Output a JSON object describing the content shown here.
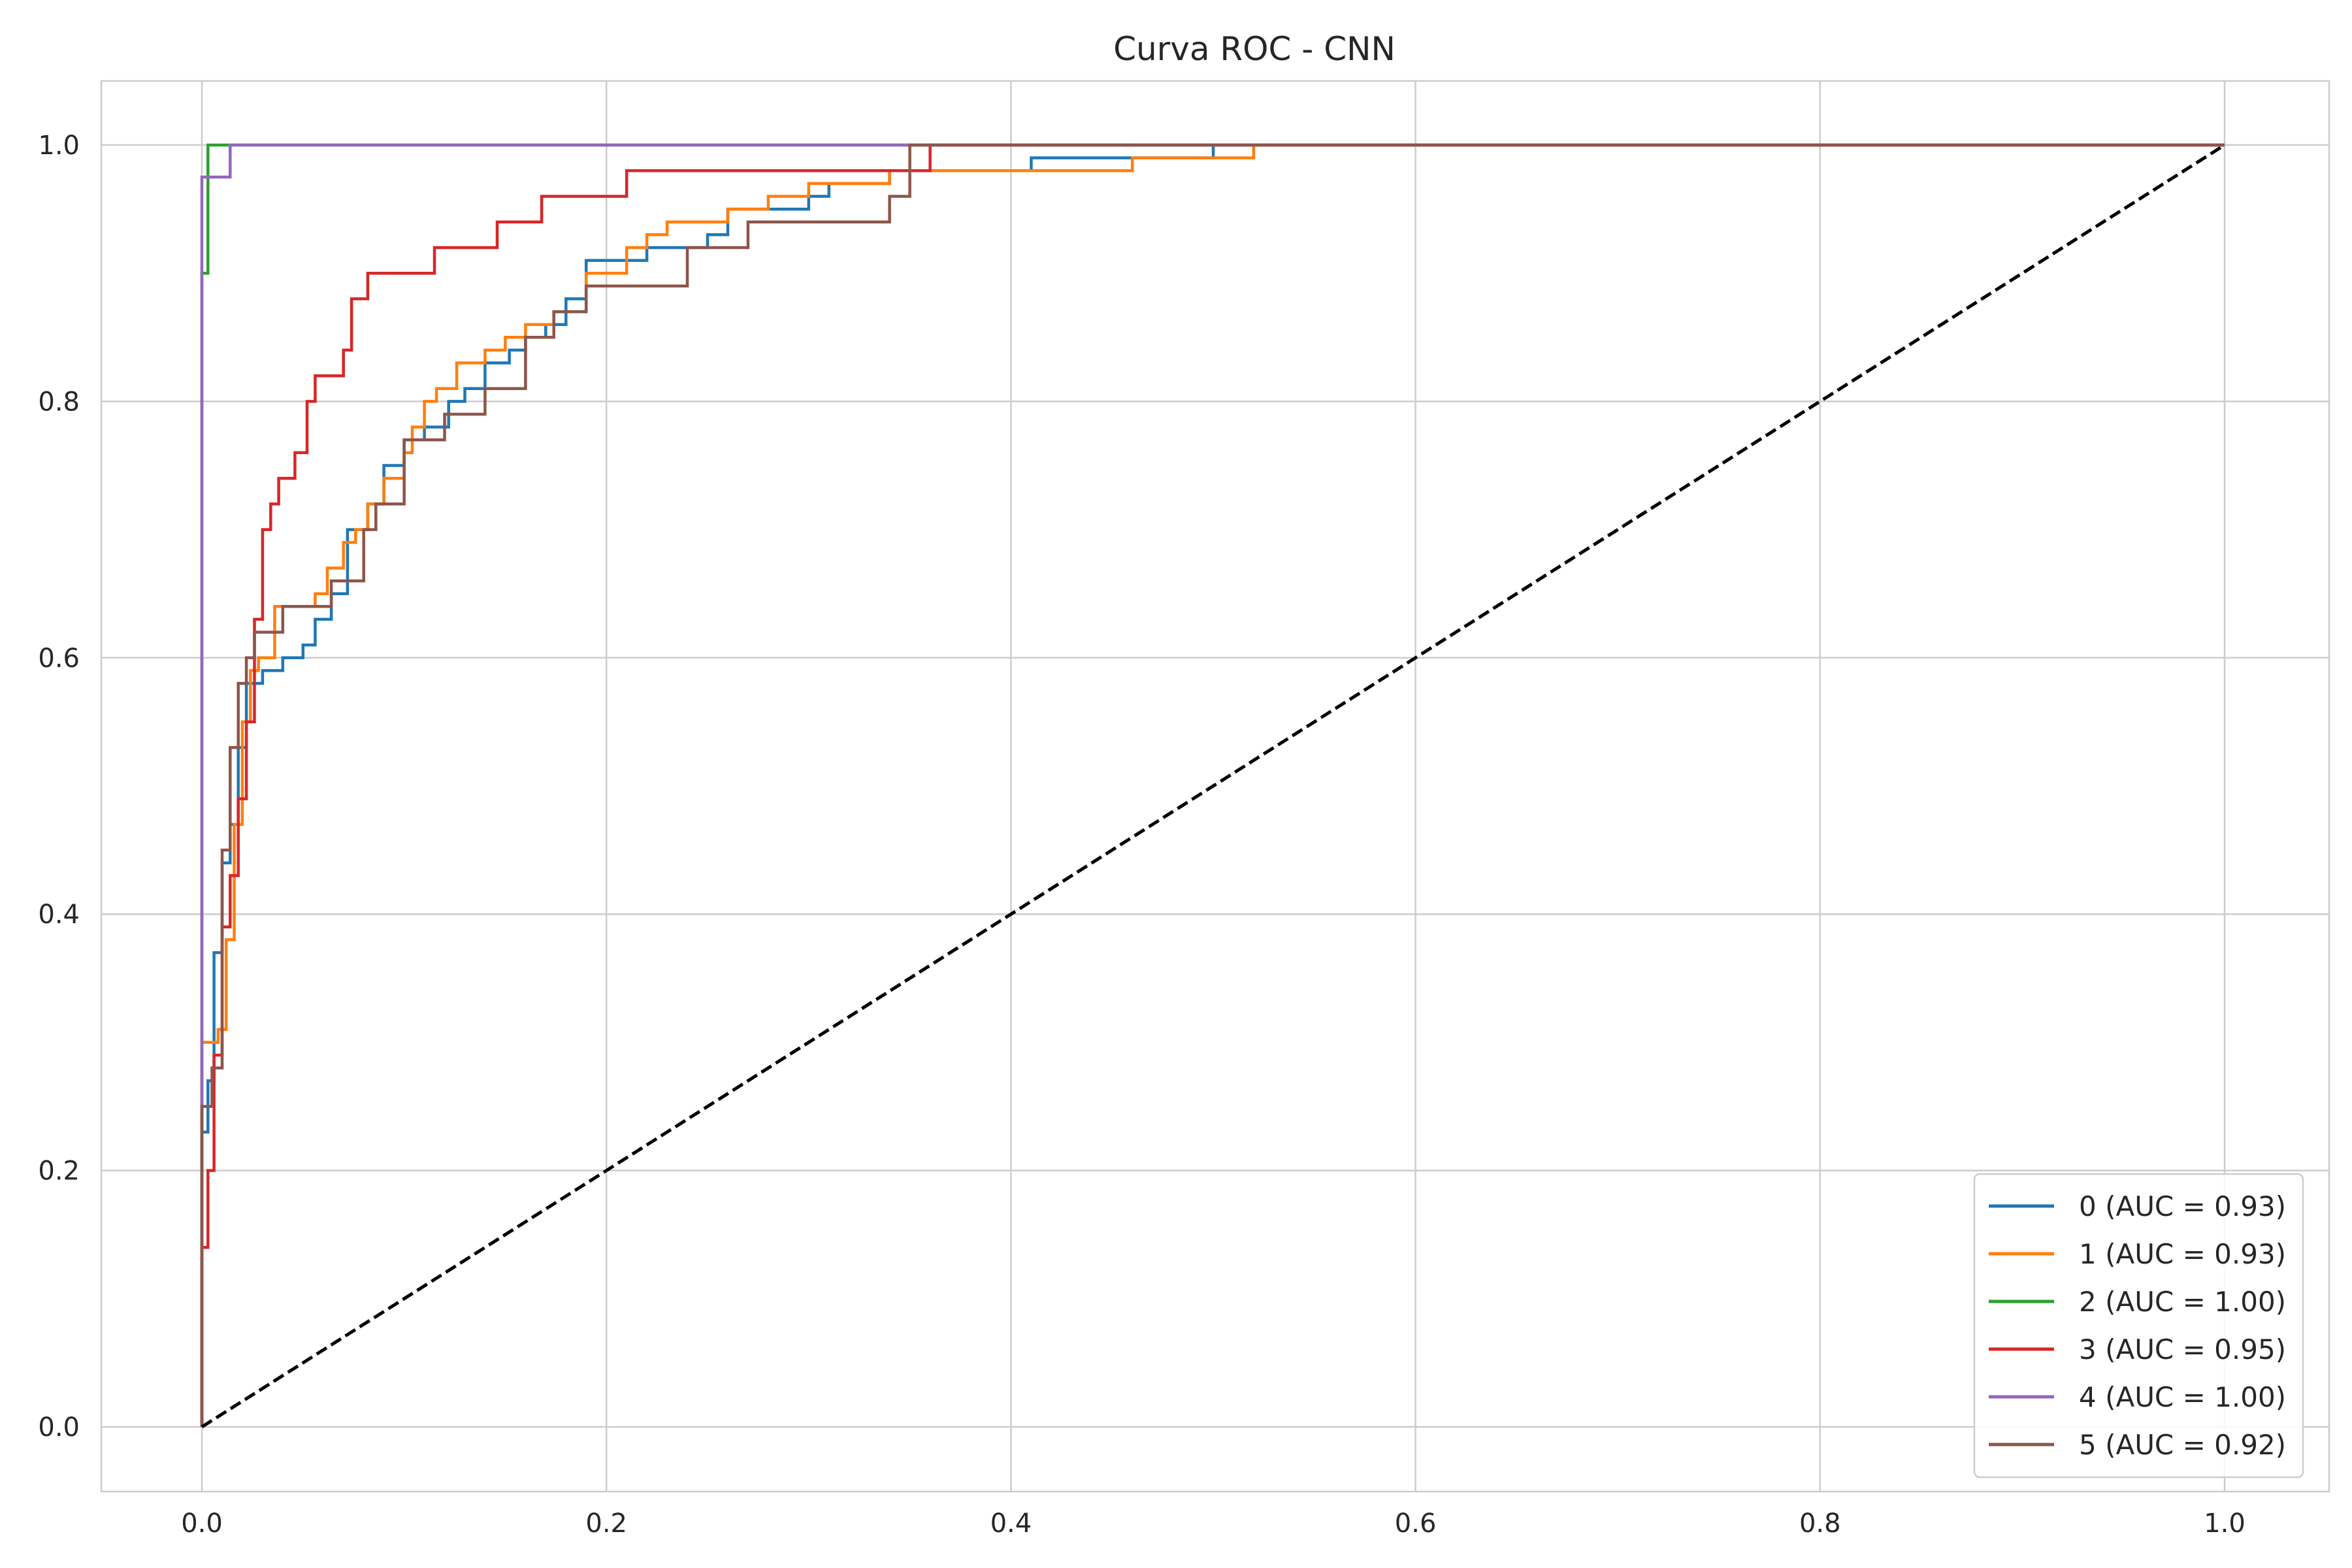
{
  "chart_data": {
    "type": "line",
    "title": "Curva ROC - CNN",
    "xlabel": "",
    "ylabel": "",
    "xlim": [
      -0.05,
      1.05
    ],
    "ylim": [
      -0.05,
      1.05
    ],
    "x_ticks": [
      0.0,
      0.2,
      0.4,
      0.6,
      0.8,
      1.0
    ],
    "y_ticks": [
      0.0,
      0.2,
      0.4,
      0.6,
      0.8,
      1.0
    ],
    "x_tick_labels": [
      "0.0",
      "0.2",
      "0.4",
      "0.6",
      "0.8",
      "1.0"
    ],
    "y_tick_labels": [
      "0.0",
      "0.2",
      "0.4",
      "0.6",
      "0.8",
      "1.0"
    ],
    "grid": true,
    "legend_position": "lower-right",
    "series": [
      {
        "name": "0 (AUC = 0.93)",
        "color": "#1f77b4",
        "x": [
          0.0,
          0.0,
          0.003,
          0.003,
          0.006,
          0.006,
          0.01,
          0.01,
          0.014,
          0.014,
          0.018,
          0.018,
          0.022,
          0.022,
          0.026,
          0.026,
          0.03,
          0.03,
          0.04,
          0.04,
          0.05,
          0.05,
          0.056,
          0.056,
          0.064,
          0.064,
          0.072,
          0.072,
          0.082,
          0.082,
          0.09,
          0.09,
          0.1,
          0.1,
          0.11,
          0.11,
          0.122,
          0.122,
          0.13,
          0.13,
          0.14,
          0.14,
          0.152,
          0.152,
          0.16,
          0.16,
          0.17,
          0.17,
          0.18,
          0.18,
          0.19,
          0.19,
          0.22,
          0.22,
          0.25,
          0.25,
          0.26,
          0.26,
          0.3,
          0.3,
          0.31,
          0.31,
          0.34,
          0.34,
          0.37,
          0.37,
          0.41,
          0.41,
          0.48,
          0.48,
          0.5,
          0.5,
          0.52,
          1.0
        ],
        "y": [
          0.0,
          0.23,
          0.23,
          0.27,
          0.27,
          0.37,
          0.37,
          0.44,
          0.44,
          0.47,
          0.47,
          0.53,
          0.53,
          0.58,
          0.58,
          0.58,
          0.58,
          0.59,
          0.59,
          0.6,
          0.6,
          0.61,
          0.61,
          0.63,
          0.63,
          0.65,
          0.65,
          0.7,
          0.7,
          0.72,
          0.72,
          0.75,
          0.75,
          0.77,
          0.77,
          0.78,
          0.78,
          0.8,
          0.8,
          0.81,
          0.81,
          0.83,
          0.83,
          0.84,
          0.84,
          0.85,
          0.85,
          0.86,
          0.86,
          0.88,
          0.88,
          0.91,
          0.91,
          0.92,
          0.92,
          0.93,
          0.93,
          0.95,
          0.95,
          0.96,
          0.96,
          0.97,
          0.97,
          0.98,
          0.98,
          0.98,
          0.98,
          0.99,
          0.99,
          0.99,
          0.99,
          1.0,
          1.0,
          1.0
        ]
      },
      {
        "name": "1 (AUC = 0.93)",
        "color": "#ff7f0e",
        "x": [
          0.0,
          0.0,
          0.008,
          0.008,
          0.012,
          0.012,
          0.016,
          0.016,
          0.02,
          0.02,
          0.024,
          0.024,
          0.028,
          0.028,
          0.036,
          0.036,
          0.056,
          0.056,
          0.062,
          0.062,
          0.07,
          0.07,
          0.076,
          0.076,
          0.082,
          0.082,
          0.09,
          0.09,
          0.1,
          0.1,
          0.104,
          0.104,
          0.11,
          0.11,
          0.116,
          0.116,
          0.126,
          0.126,
          0.14,
          0.14,
          0.15,
          0.15,
          0.16,
          0.16,
          0.174,
          0.174,
          0.19,
          0.19,
          0.21,
          0.21,
          0.22,
          0.22,
          0.23,
          0.23,
          0.26,
          0.26,
          0.28,
          0.28,
          0.3,
          0.3,
          0.34,
          0.34,
          0.36,
          0.36,
          0.46,
          0.46,
          0.52,
          0.52,
          0.556,
          1.0
        ],
        "y": [
          0.0,
          0.3,
          0.3,
          0.31,
          0.31,
          0.38,
          0.38,
          0.47,
          0.47,
          0.55,
          0.55,
          0.59,
          0.59,
          0.6,
          0.6,
          0.64,
          0.64,
          0.65,
          0.65,
          0.67,
          0.67,
          0.69,
          0.69,
          0.7,
          0.7,
          0.72,
          0.72,
          0.74,
          0.74,
          0.76,
          0.76,
          0.78,
          0.78,
          0.8,
          0.8,
          0.81,
          0.81,
          0.83,
          0.83,
          0.84,
          0.84,
          0.85,
          0.85,
          0.86,
          0.86,
          0.87,
          0.87,
          0.9,
          0.9,
          0.92,
          0.92,
          0.93,
          0.93,
          0.94,
          0.94,
          0.95,
          0.95,
          0.96,
          0.96,
          0.97,
          0.97,
          0.98,
          0.98,
          0.98,
          0.98,
          0.99,
          0.99,
          1.0,
          1.0,
          1.0
        ]
      },
      {
        "name": "2 (AUC = 1.00)",
        "color": "#2ca02c",
        "x": [
          0.0,
          0.0,
          0.003,
          0.003,
          1.0
        ],
        "y": [
          0.0,
          0.9,
          0.9,
          1.0,
          1.0
        ]
      },
      {
        "name": "3 (AUC = 0.95)",
        "color": "#d62728",
        "x": [
          0.0,
          0.0,
          0.003,
          0.003,
          0.006,
          0.006,
          0.01,
          0.01,
          0.014,
          0.014,
          0.018,
          0.018,
          0.022,
          0.022,
          0.026,
          0.026,
          0.03,
          0.03,
          0.034,
          0.034,
          0.038,
          0.038,
          0.04,
          0.04,
          0.046,
          0.046,
          0.052,
          0.052,
          0.056,
          0.056,
          0.07,
          0.07,
          0.074,
          0.074,
          0.082,
          0.082,
          0.115,
          0.115,
          0.146,
          0.146,
          0.168,
          0.168,
          0.21,
          0.21,
          0.27,
          0.27,
          0.36,
          0.36,
          1.0
        ],
        "y": [
          0.0,
          0.14,
          0.14,
          0.2,
          0.2,
          0.29,
          0.29,
          0.39,
          0.39,
          0.43,
          0.43,
          0.49,
          0.49,
          0.55,
          0.55,
          0.63,
          0.63,
          0.7,
          0.7,
          0.72,
          0.72,
          0.74,
          0.74,
          0.74,
          0.74,
          0.76,
          0.76,
          0.8,
          0.8,
          0.82,
          0.82,
          0.84,
          0.84,
          0.88,
          0.88,
          0.9,
          0.9,
          0.92,
          0.92,
          0.94,
          0.94,
          0.96,
          0.96,
          0.98,
          0.98,
          0.98,
          0.98,
          1.0,
          1.0
        ]
      },
      {
        "name": "4 (AUC = 1.00)",
        "color": "#9467bd",
        "x": [
          0.0,
          0.0,
          0.014,
          0.014,
          1.0
        ],
        "y": [
          0.0,
          0.975,
          0.975,
          1.0,
          1.0
        ]
      },
      {
        "name": "5 (AUC = 0.92)",
        "color": "#8c564b",
        "x": [
          0.0,
          0.0,
          0.005,
          0.005,
          0.01,
          0.01,
          0.014,
          0.014,
          0.018,
          0.018,
          0.022,
          0.022,
          0.026,
          0.026,
          0.03,
          0.03,
          0.04,
          0.04,
          0.064,
          0.064,
          0.08,
          0.08,
          0.086,
          0.086,
          0.1,
          0.1,
          0.12,
          0.12,
          0.14,
          0.14,
          0.16,
          0.16,
          0.174,
          0.174,
          0.19,
          0.19,
          0.24,
          0.24,
          0.27,
          0.27,
          0.34,
          0.34,
          0.35,
          0.35,
          0.45,
          0.45,
          1.0
        ],
        "y": [
          0.0,
          0.25,
          0.25,
          0.28,
          0.28,
          0.45,
          0.45,
          0.53,
          0.53,
          0.58,
          0.58,
          0.6,
          0.6,
          0.62,
          0.62,
          0.62,
          0.62,
          0.64,
          0.64,
          0.66,
          0.66,
          0.7,
          0.7,
          0.72,
          0.72,
          0.77,
          0.77,
          0.79,
          0.79,
          0.81,
          0.81,
          0.85,
          0.85,
          0.87,
          0.87,
          0.89,
          0.89,
          0.92,
          0.92,
          0.94,
          0.94,
          0.96,
          0.96,
          1.0,
          1.0,
          1.0,
          1.0
        ]
      },
      {
        "name": "",
        "color": "#000000",
        "dashed": true,
        "x": [
          0.0,
          1.0
        ],
        "y": [
          0.0,
          1.0
        ]
      }
    ]
  }
}
